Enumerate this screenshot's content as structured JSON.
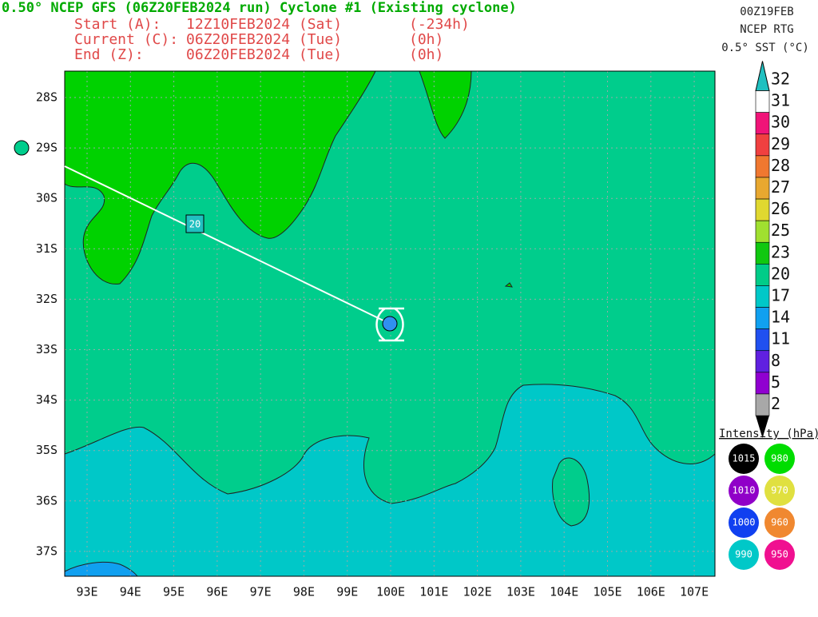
{
  "header": {
    "title": "0.50° NCEP GFS (06Z20FEB2024 run) Cyclone #1 (Existing cyclone)",
    "rows": [
      [
        "Start (A):",
        "12Z10FEB2024 (Sat)",
        "(-234h)"
      ],
      [
        "Current (C):",
        "06Z20FEB2024 (Tue)",
        "(0h)"
      ],
      [
        "End (Z):",
        "06Z20FEB2024 (Tue)",
        "(0h)"
      ]
    ],
    "right": [
      "00Z19FEB",
      "NCEP RTG",
      "0.5° SST (°C)"
    ]
  },
  "map": {
    "lat_labels": [
      "28S",
      "29S",
      "30S",
      "31S",
      "32S",
      "33S",
      "34S",
      "35S",
      "36S",
      "37S"
    ],
    "lon_labels": [
      "93E",
      "94E",
      "95E",
      "96E",
      "97E",
      "98E",
      "99E",
      "100E",
      "101E",
      "102E",
      "103E",
      "104E",
      "105E",
      "106E",
      "107E"
    ],
    "track_label": "20"
  },
  "sst_scale": {
    "labels": [
      "32",
      "31",
      "30",
      "29",
      "28",
      "27",
      "26",
      "25",
      "23",
      "20",
      "17",
      "14",
      "11",
      "8",
      "5",
      "2"
    ],
    "colors": [
      "#20c0c0",
      "#ffffff",
      "#f01478",
      "#f04040",
      "#f07830",
      "#e8a830",
      "#e0d830",
      "#a0e030",
      "#10c810",
      "#00cc88",
      "#00c8c8",
      "#10a0f0",
      "#2050f0",
      "#6020e0",
      "#9000d0",
      "#a8a8a8"
    ]
  },
  "intensity": {
    "title": "Intensity (hPa):",
    "items": [
      {
        "label": "1015",
        "color": "#000000"
      },
      {
        "label": "980",
        "color": "#00dd00"
      },
      {
        "label": "1010",
        "color": "#9000c8"
      },
      {
        "label": "970",
        "color": "#e0e040"
      },
      {
        "label": "1000",
        "color": "#1040f0"
      },
      {
        "label": "960",
        "color": "#f08830"
      },
      {
        "label": "990",
        "color": "#00c8c8"
      },
      {
        "label": "950",
        "color": "#f01090"
      }
    ]
  }
}
